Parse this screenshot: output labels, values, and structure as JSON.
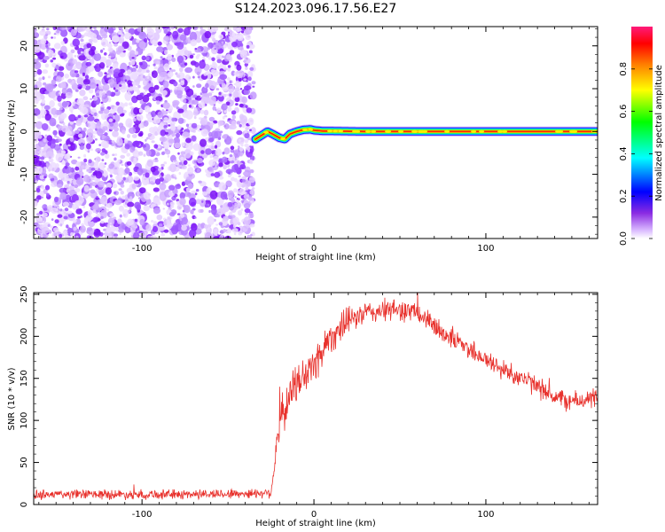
{
  "figure": {
    "title": "S124.2023.096.17.56.E27"
  },
  "chart_data": [
    {
      "type": "heatmap",
      "xlabel": "Height of straight line (km)",
      "ylabel": "Frequency (Hz)",
      "xlim": [
        -163,
        165
      ],
      "ylim": [
        -25,
        24.5
      ],
      "x_ticks": [
        -100,
        0,
        100
      ],
      "y_ticks": [
        -20,
        -10,
        0,
        10,
        20
      ],
      "noise_region_x": [
        -163,
        -35
      ],
      "signal_trace": {
        "x": [
          -34,
          -30,
          -27,
          -24,
          -20,
          -17,
          -14,
          -10,
          -6,
          -2,
          0,
          5,
          10,
          20,
          30,
          50,
          100,
          165
        ],
        "y": [
          -1.8,
          -0.8,
          0.0,
          -0.6,
          -1.5,
          -1.8,
          -0.6,
          0.0,
          0.4,
          0.5,
          0.3,
          0.1,
          0.1,
          0.05,
          0.0,
          0.0,
          0.0,
          0.0
        ]
      },
      "colorbar": {
        "label": "Normalized spectral amplitude",
        "range": [
          0,
          1
        ],
        "ticks": [
          "0.0",
          "0.2",
          "0.4",
          "0.6",
          "0.8"
        ],
        "colors": [
          "#ffffff",
          "#9a4dff",
          "#0000ff",
          "#00ffff",
          "#00ff00",
          "#ffff00",
          "#ff8000",
          "#ff0000",
          "#ff007f"
        ]
      },
      "grid": false
    },
    {
      "type": "line",
      "xlabel": "Height of straight line (km)",
      "ylabel": "SNR (10 * v/v)",
      "xlim": [
        -163,
        165
      ],
      "ylim": [
        0,
        252
      ],
      "x_ticks": [
        -100,
        0,
        100
      ],
      "y_ticks": [
        0,
        50,
        100,
        150,
        200,
        250
      ],
      "color": "#e8322d",
      "grid": false,
      "trend": {
        "x": [
          -163,
          -120,
          -80,
          -40,
          -25,
          -22,
          -20,
          -15,
          -10,
          -5,
          0,
          5,
          10,
          20,
          30,
          40,
          50,
          60,
          70,
          80,
          90,
          100,
          110,
          120,
          130,
          140,
          150,
          165
        ],
        "y": [
          12,
          12,
          12,
          13,
          14,
          65,
          95,
          125,
          145,
          155,
          165,
          185,
          200,
          218,
          228,
          230,
          232,
          228,
          212,
          198,
          186,
          172,
          160,
          152,
          140,
          128,
          122,
          127
        ]
      },
      "noise_amplitude": {
        "x": [
          -163,
          -25,
          -22,
          0,
          25,
          165
        ],
        "y": [
          6,
          6,
          25,
          25,
          14,
          12
        ]
      }
    }
  ]
}
